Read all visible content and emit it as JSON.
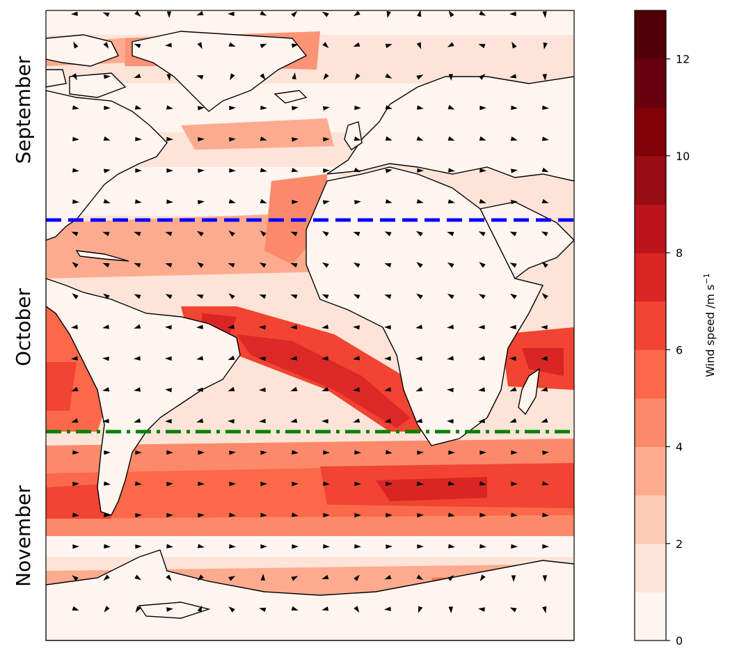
{
  "figure": {
    "month_labels": [
      "September",
      "October",
      "November"
    ],
    "divider_lines": [
      {
        "name": "blue-dashed",
        "color": "#0000ff",
        "style": "dashed"
      },
      {
        "name": "green-dashdot",
        "color": "#008000",
        "style": "dash-dot"
      }
    ]
  },
  "colorbar": {
    "label_main": "Wind speed /m s",
    "label_sup": "−1",
    "range": [
      0,
      13
    ],
    "ticks": [
      "0",
      "2",
      "4",
      "6",
      "8",
      "10",
      "12"
    ],
    "tick_values": [
      0,
      2,
      4,
      6,
      8,
      10,
      12
    ],
    "levels": 13,
    "colors": [
      "#fff5f0",
      "#fee4d8",
      "#fdcab5",
      "#fcab8f",
      "#fc8a6a",
      "#fb694a",
      "#f14432",
      "#d92523",
      "#bc141a",
      "#980c13",
      "#800008",
      "#67000d",
      "#520006"
    ]
  },
  "colors": {
    "ocean_light": "#fee4d8",
    "land": "#fff5f0",
    "coast": "#000000",
    "arrow": "#000000"
  }
}
